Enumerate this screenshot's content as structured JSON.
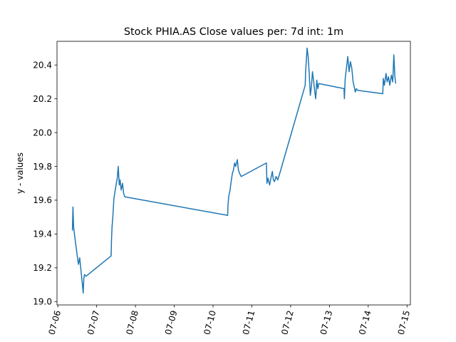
{
  "chart_data": {
    "type": "line",
    "title": "Stock PHIA.AS Close values per: 7d int: 1m",
    "xlabel": "",
    "ylabel": "y - values",
    "ylim": [
      18.98,
      20.54
    ],
    "xlim": [
      "2020-07-05 23:28",
      "2020-07-15 02:05"
    ],
    "y_ticks": [
      19.0,
      19.2,
      19.4,
      19.6,
      19.8,
      20.0,
      20.2,
      20.4
    ],
    "y_tick_labels": [
      "19.0",
      "19.2",
      "19.4",
      "19.6",
      "19.8",
      "20.0",
      "20.2",
      "20.4"
    ],
    "x_ticks": [
      "2020-07-06",
      "2020-07-07",
      "2020-07-08",
      "2020-07-09",
      "2020-07-10",
      "2020-07-11",
      "2020-07-12",
      "2020-07-13",
      "2020-07-14",
      "2020-07-15"
    ],
    "x_tick_labels": [
      "07-06",
      "07-07",
      "07-08",
      "07-09",
      "07-10",
      "07-11",
      "07-12",
      "07-13",
      "07-14",
      "07-15"
    ],
    "grid": false,
    "series": [
      {
        "color": "#1f77b4",
        "x": [
          "2020-07-06 09:00",
          "2020-07-06 09:20",
          "2020-07-06 09:45",
          "2020-07-06 10:30",
          "2020-07-06 11:20",
          "2020-07-06 12:00",
          "2020-07-06 12:45",
          "2020-07-06 13:30",
          "2020-07-06 14:20",
          "2020-07-06 15:00",
          "2020-07-06 15:40",
          "2020-07-06 16:05",
          "2020-07-06 16:30",
          "2020-07-06 17:25",
          "2020-07-07 08:57",
          "2020-07-07 09:10",
          "2020-07-07 09:30",
          "2020-07-07 10:00",
          "2020-07-07 10:40",
          "2020-07-07 11:30",
          "2020-07-07 12:10",
          "2020-07-07 12:45",
          "2020-07-07 13:20",
          "2020-07-07 14:00",
          "2020-07-07 14:30",
          "2020-07-07 15:10",
          "2020-07-07 16:00",
          "2020-07-07 16:40",
          "2020-07-07 17:25",
          "2020-07-10 09:02",
          "2020-07-10 09:15",
          "2020-07-10 09:40",
          "2020-07-10 10:30",
          "2020-07-10 11:20",
          "2020-07-10 12:00",
          "2020-07-10 12:40",
          "2020-07-10 13:20",
          "2020-07-10 14:00",
          "2020-07-10 15:00",
          "2020-07-10 15:40",
          "2020-07-10 16:20",
          "2020-07-10 17:25",
          "2020-07-11 09:00",
          "2020-07-11 09:20",
          "2020-07-11 10:00",
          "2020-07-11 11:00",
          "2020-07-11 12:00",
          "2020-07-11 12:40",
          "2020-07-11 13:20",
          "2020-07-11 14:00",
          "2020-07-11 15:00",
          "2020-07-11 16:00",
          "2020-07-11 17:00",
          "2020-07-12 09:00",
          "2020-07-12 09:15",
          "2020-07-12 09:40",
          "2020-07-12 10:10",
          "2020-07-12 10:50",
          "2020-07-12 11:30",
          "2020-07-12 12:10",
          "2020-07-12 12:50",
          "2020-07-12 13:30",
          "2020-07-12 14:10",
          "2020-07-12 14:50",
          "2020-07-12 15:30",
          "2020-07-12 16:10",
          "2020-07-12 16:50",
          "2020-07-12 17:25",
          "2020-07-13 09:00",
          "2020-07-13 09:15",
          "2020-07-13 09:45",
          "2020-07-13 10:30",
          "2020-07-13 11:20",
          "2020-07-13 12:10",
          "2020-07-13 13:00",
          "2020-07-13 13:50",
          "2020-07-13 14:40",
          "2020-07-13 15:20",
          "2020-07-13 16:00",
          "2020-07-13 16:40",
          "2020-07-13 17:25",
          "2020-07-14 09:00",
          "2020-07-14 09:20",
          "2020-07-14 10:00",
          "2020-07-14 11:00",
          "2020-07-14 11:40",
          "2020-07-14 12:30",
          "2020-07-14 13:20",
          "2020-07-14 14:20",
          "2020-07-14 15:10",
          "2020-07-14 15:50",
          "2020-07-14 16:30",
          "2020-07-14 17:00"
        ],
        "y": [
          19.42,
          19.56,
          19.44,
          19.38,
          19.32,
          19.27,
          19.22,
          19.26,
          19.18,
          19.12,
          19.05,
          19.14,
          19.16,
          19.15,
          19.27,
          19.36,
          19.44,
          19.5,
          19.61,
          19.66,
          19.7,
          19.73,
          19.8,
          19.69,
          19.72,
          19.66,
          19.7,
          19.64,
          19.62,
          19.51,
          19.57,
          19.62,
          19.66,
          19.72,
          19.76,
          19.78,
          19.82,
          19.8,
          19.84,
          19.78,
          19.76,
          19.74,
          19.82,
          19.7,
          19.73,
          19.69,
          19.74,
          19.77,
          19.72,
          19.71,
          19.74,
          19.72,
          19.75,
          20.28,
          20.36,
          20.42,
          20.5,
          20.45,
          20.35,
          20.22,
          20.27,
          20.36,
          20.31,
          20.25,
          20.2,
          20.31,
          20.26,
          20.29,
          20.26,
          20.2,
          20.32,
          20.38,
          20.45,
          20.36,
          20.42,
          20.38,
          20.3,
          20.27,
          20.24,
          20.26,
          20.25,
          20.23,
          20.32,
          20.28,
          20.35,
          20.3,
          20.33,
          20.28,
          20.34,
          20.3,
          20.46,
          20.33,
          20.29
        ]
      }
    ]
  }
}
